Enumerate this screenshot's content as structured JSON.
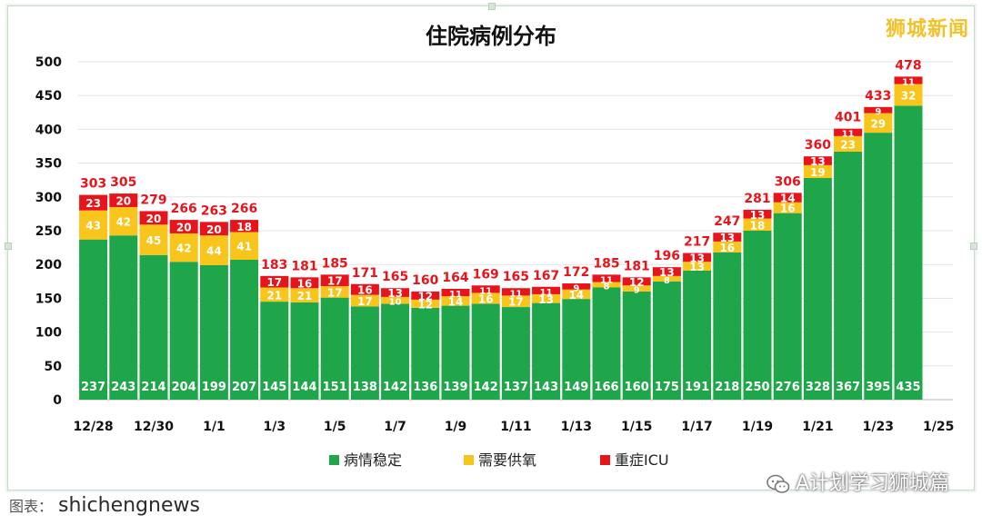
{
  "header": {
    "title": "住院病例分布",
    "watermark": "狮城新闻"
  },
  "footer": {
    "source_text": "图表：",
    "site_name": "shichengnews",
    "account_name": "A计划学习狮城篇"
  },
  "colors": {
    "stable": "#1fa54a",
    "oxygen": "#f7c51c",
    "icu": "#e8141c",
    "total_label": "#e8141c",
    "bar_value_text": "#ffffff",
    "axis_text": "#111111",
    "grid": "#e3e3e3"
  },
  "chart_data": {
    "type": "bar",
    "stacked": true,
    "title": "住院病例分布",
    "categories": [
      "12/28",
      "12/29",
      "12/30",
      "12/31",
      "1/1",
      "1/2",
      "1/3",
      "1/4",
      "1/5",
      "1/6",
      "1/7",
      "1/8",
      "1/9",
      "1/10",
      "1/11",
      "1/12",
      "1/13",
      "1/14",
      "1/15",
      "1/16",
      "1/17",
      "1/18",
      "1/19",
      "1/20",
      "1/21",
      "1/22",
      "1/23",
      "1/24"
    ],
    "x_tick_labels": [
      "12/28",
      "12/30",
      "1/1",
      "1/3",
      "1/5",
      "1/7",
      "1/9",
      "1/11",
      "1/13",
      "1/15",
      "1/17",
      "1/19",
      "1/21",
      "1/23",
      "1/25"
    ],
    "y_ticks": [
      0,
      50,
      100,
      150,
      200,
      250,
      300,
      350,
      400,
      450,
      500
    ],
    "ylim": [
      0,
      500
    ],
    "grid": true,
    "legend_position": "bottom",
    "series": [
      {
        "name": "病情稳定",
        "color": "#1fa54a",
        "values": [
          237,
          243,
          214,
          204,
          199,
          207,
          145,
          144,
          151,
          138,
          142,
          136,
          139,
          142,
          137,
          143,
          149,
          166,
          160,
          175,
          191,
          218,
          250,
          276,
          328,
          367,
          395,
          435
        ]
      },
      {
        "name": "需要供氧",
        "color": "#f7c51c",
        "values": [
          43,
          42,
          45,
          42,
          44,
          41,
          21,
          21,
          17,
          17,
          10,
          12,
          14,
          16,
          17,
          13,
          14,
          8,
          9,
          8,
          13,
          16,
          18,
          16,
          19,
          23,
          29,
          32
        ]
      },
      {
        "name": "重症ICU",
        "color": "#e8141c",
        "values": [
          23,
          20,
          20,
          20,
          20,
          18,
          17,
          16,
          17,
          16,
          13,
          12,
          11,
          11,
          11,
          11,
          9,
          11,
          12,
          13,
          13,
          13,
          13,
          14,
          13,
          11,
          9,
          11
        ]
      }
    ],
    "totals": [
      303,
      305,
      279,
      266,
      263,
      266,
      183,
      181,
      185,
      171,
      165,
      160,
      164,
      169,
      165,
      167,
      172,
      185,
      181,
      196,
      217,
      247,
      281,
      306,
      360,
      401,
      433,
      478
    ]
  }
}
